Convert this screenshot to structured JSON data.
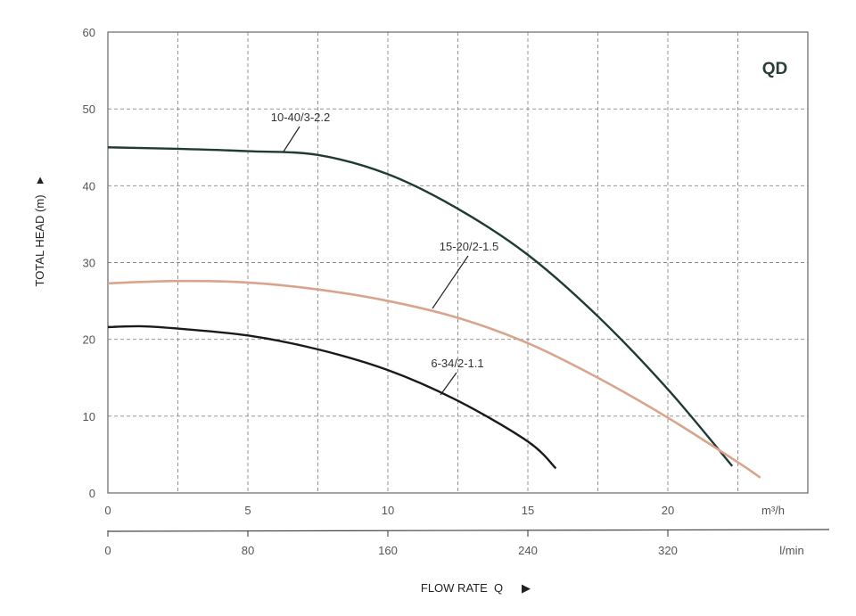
{
  "chart_data": {
    "type": "line",
    "title": "QD",
    "xlabel": "FLOW RATE Q",
    "ylabel": "TOTAL HEAD (m)",
    "xlim": [
      0,
      25
    ],
    "ylim": [
      0,
      60
    ],
    "grid": true,
    "legend_position": "inline labels",
    "x_unit_primary": "m³/h",
    "x_unit_secondary": "l/min",
    "y_ticks": [
      0,
      10,
      20,
      30,
      40,
      50,
      60
    ],
    "x_ticks_primary": [
      0,
      5,
      10,
      15,
      20
    ],
    "x_ticks_secondary": [
      0,
      80,
      160,
      240,
      320
    ],
    "series": [
      {
        "name": "10-40/3-2.2",
        "color": "#1f3b33",
        "x": [
          0,
          2.5,
          5,
          7.5,
          10,
          12.5,
          15,
          17.5,
          20,
          22.3
        ],
        "values": [
          45,
          44.8,
          44.5,
          44,
          41.5,
          37,
          31,
          23,
          13.5,
          3.5
        ]
      },
      {
        "name": "15-20/2-1.5",
        "color": "#d9a48c",
        "x": [
          0,
          2.5,
          5,
          7.5,
          10,
          12.5,
          15,
          17.5,
          20,
          22.5,
          23.3
        ],
        "values": [
          27.3,
          27.6,
          27.4,
          26.5,
          25,
          22.8,
          19.5,
          15,
          9.8,
          4,
          2
        ]
      },
      {
        "name": "6-34/2-1.1",
        "color": "#1a1a1a",
        "x": [
          0,
          1.25,
          2.5,
          5,
          7.5,
          10,
          12.5,
          15,
          16
        ],
        "values": [
          21.6,
          21.7,
          21.4,
          20.5,
          18.7,
          16,
          12,
          6.7,
          3.2
        ]
      }
    ]
  },
  "labels": {
    "model": "QD",
    "y_axis": "TOTAL HEAD (m)",
    "y_arrow": "▲",
    "x_axis": "FLOW RATE  Q",
    "x_arrow": "▶",
    "unit_primary": "m³/h",
    "unit_secondary": "l/min",
    "series_labels": [
      "10-40/3-2.2",
      "15-20/2-1.5",
      "6-34/2-1.1"
    ]
  }
}
